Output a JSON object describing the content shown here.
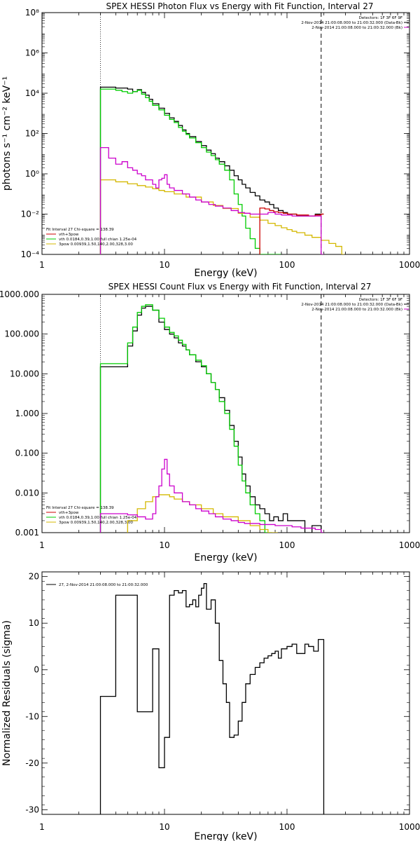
{
  "chart_data": [
    {
      "type": "line",
      "title": "SPEX HESSI Photon Flux vs Energy with Fit Function, Interval 27",
      "xlabel": "Energy (keV)",
      "ylabel": "photons s⁻¹ cm⁻² keV⁻¹",
      "xscale": "log",
      "yscale": "log",
      "xlim": [
        1,
        1000
      ],
      "ylim": [
        0.0001,
        100000000
      ],
      "xticks": [
        1,
        10,
        100,
        1000
      ],
      "xtick_labels": [
        "1",
        "10",
        "100",
        "1000"
      ],
      "yticks": [
        0.0001,
        0.01,
        1,
        100,
        10000,
        1000000,
        100000000
      ],
      "ytick_labels": [
        "10⁻⁴",
        "10⁻²",
        "10⁰",
        "10²",
        "10⁴",
        "10⁶",
        "10⁸"
      ],
      "header_lines": [
        "Detectors: 1F 3F 6F 9F",
        "2-Nov-2014 21:00:08.000 to 21:00:32.000 (Data-Bk)",
        "2-Nov-2014 21:00:08.000 to 21:00:32.000 (Bk)"
      ],
      "legend_lines": [
        "Fit Interval 27   Chi-square = 138.39",
        "vth+3pow",
        "vth 0.0184,0.39,1.00  full chian 1.25e-04",
        "3pow 0.00939,1.50,140,2.00,328,3.00"
      ],
      "legend_position": "bottom-left",
      "vlines": [
        3.0,
        190
      ],
      "series": [
        {
          "name": "2-Nov-2014 21:00:08.000 to 21:00:32.000 (Data-Bk)",
          "color": "#000000",
          "x": [
            3.0,
            3.5,
            4.0,
            4.5,
            5.0,
            5.5,
            6.0,
            6.5,
            7.0,
            7.5,
            8.0,
            9.0,
            10.0,
            11.0,
            12.0,
            13.0,
            14.0,
            15.0,
            16.0,
            18.0,
            20.0,
            22.0,
            24.0,
            26.0,
            28.0,
            31.0,
            34.0,
            37.0,
            40.0,
            43.0,
            46.0,
            50.0,
            55.0,
            60.0,
            66.0,
            72.0,
            78.0,
            85.0,
            93.0,
            101.0,
            110.0,
            120.0,
            130.0,
            140.0,
            150.0,
            170.0,
            190.0
          ],
          "y": [
            20000,
            20000,
            18000,
            18000,
            16000,
            12000,
            15000,
            11000,
            8000,
            5000,
            3000,
            1800,
            1000,
            600,
            400,
            250,
            150,
            100,
            70,
            40,
            25,
            15,
            10,
            6,
            4,
            2.5,
            1.5,
            0.8,
            0.5,
            0.3,
            0.2,
            0.12,
            0.08,
            0.05,
            0.04,
            0.03,
            0.02,
            0.015,
            0.012,
            0.01,
            0.01,
            0.008,
            0.008,
            0.008,
            0.008,
            0.01,
            0.01
          ]
        },
        {
          "name": "vth",
          "color": "#00cc00",
          "x": [
            3.0,
            3.5,
            4.0,
            4.5,
            5.0,
            5.5,
            6.0,
            6.5,
            7.0,
            7.5,
            8.0,
            9.0,
            10.0,
            11.0,
            12.0,
            13.0,
            14.0,
            15.0,
            16.0,
            18.0,
            20.0,
            22.0,
            24.0,
            26.0,
            28.0,
            31.0,
            34.0,
            37.0,
            40.0,
            43.0,
            46.0,
            50.0,
            55.0,
            60.0,
            66.0,
            72.0,
            78.0,
            85.0
          ],
          "y": [
            16000,
            16000,
            14000,
            12000,
            10000,
            12000,
            14000,
            9000,
            6000,
            4000,
            2500,
            1500,
            800,
            500,
            350,
            200,
            130,
            90,
            60,
            35,
            20,
            12,
            8,
            5,
            3,
            1.5,
            0.5,
            0.1,
            0.03,
            0.008,
            0.002,
            0.0006,
            0.0002,
            0.0001,
            0.0001,
            0.0001,
            0.0001,
            0.0001
          ]
        },
        {
          "name": "3pow",
          "color": "#d4b800",
          "x": [
            3.0,
            4.0,
            5.0,
            6.0,
            7.0,
            8.0,
            9.0,
            10.0,
            12.0,
            15.0,
            20.0,
            25.0,
            30.0,
            40.0,
            50.0,
            60.0,
            70.0,
            80.0,
            90.0,
            100.0,
            110.0,
            120.0,
            140.0,
            160.0,
            190.0,
            220.0,
            250.0,
            280.0
          ],
          "y": [
            0.5,
            0.4,
            0.32,
            0.26,
            0.22,
            0.18,
            0.15,
            0.13,
            0.1,
            0.07,
            0.04,
            0.027,
            0.019,
            0.011,
            0.007,
            0.005,
            0.0035,
            0.0027,
            0.0021,
            0.0017,
            0.0014,
            0.0012,
            0.0009,
            0.0007,
            0.0005,
            0.00035,
            0.00025,
            0.0001
          ]
        },
        {
          "name": "vth+3pow",
          "color": "#cc0000",
          "x": [
            60.0,
            66.0,
            72.0,
            78.0,
            85.0,
            93.0,
            101.0,
            110.0,
            120.0,
            130.0,
            150.0,
            170.0,
            190.0
          ],
          "y": [
            0.02,
            0.018,
            0.015,
            0.013,
            0.012,
            0.011,
            0.01,
            0.01,
            0.009,
            0.009,
            0.008,
            0.009,
            0.01
          ]
        },
        {
          "name": "2-Nov-2014 21:00:08.000 to 21:00:32.000 (Bk)",
          "color": "#cc00cc",
          "x": [
            3.0,
            3.5,
            4.0,
            4.5,
            5.0,
            5.5,
            6.0,
            6.5,
            7.0,
            8.0,
            8.5,
            9.0,
            9.5,
            10.0,
            10.5,
            11.0,
            12.0,
            14.0,
            16.0,
            18.0,
            20.0,
            23.0,
            26.0,
            30.0,
            35.0,
            40.0,
            45.0,
            50.0,
            60.0,
            70.0,
            80.0,
            90.0,
            100.0,
            110.0,
            120.0,
            140.0,
            160.0,
            190.0
          ],
          "y": [
            20,
            6,
            3,
            4,
            2,
            1.5,
            1,
            0.8,
            0.5,
            0.3,
            0.2,
            0.5,
            0.6,
            0.9,
            0.3,
            0.2,
            0.15,
            0.1,
            0.07,
            0.05,
            0.04,
            0.03,
            0.025,
            0.02,
            0.015,
            0.012,
            0.011,
            0.01,
            0.01,
            0.012,
            0.01,
            0.009,
            0.009,
            0.008,
            0.008,
            0.008,
            0.008,
            0.0001
          ]
        }
      ]
    },
    {
      "type": "line",
      "title": "SPEX HESSI Count Flux vs Energy with Fit Function, Interval 27",
      "xlabel": "Energy (keV)",
      "xscale": "log",
      "yscale": "log",
      "xlim": [
        1,
        1000
      ],
      "ylim": [
        0.001,
        1000
      ],
      "xticks": [
        1,
        10,
        100,
        1000
      ],
      "xtick_labels": [
        "1",
        "10",
        "100",
        "1000"
      ],
      "yticks": [
        0.001,
        0.01,
        0.1,
        1,
        10,
        100,
        1000
      ],
      "ytick_labels": [
        "0.001",
        "0.010",
        "0.100",
        "1.000",
        "10.000",
        "100.000",
        "1000.000"
      ],
      "header_lines": [
        "Detectors: 1F 3F 6F 9F",
        "2-Nov-2014 21:00:08.000 to 21:00:32.000 (Data-Bk)",
        "2-Nov-2014 21:00:08.000 to 21:00:32.000 (Bk)"
      ],
      "legend_lines": [
        "Fit Interval 27   Chi-square = 138.39",
        "vth+3pow",
        "vth 0.0184,0.39,1.00  full chian 1.25e-04",
        "3pow 0.00939,1.50,140,2.00,328,3.00"
      ],
      "legend_position": "bottom-left",
      "vlines": [
        3.0,
        190
      ],
      "series": [
        {
          "name": "2-Nov-2014 21:00:08.000 to 21:00:32.000 (Data-Bk)",
          "color": "#000000",
          "x": [
            3.0,
            4.0,
            5.0,
            5.5,
            6.0,
            6.5,
            7.0,
            8.0,
            9.0,
            10.0,
            11.0,
            12.0,
            13.0,
            14.0,
            15.0,
            16.0,
            18.0,
            20.0,
            22.0,
            24.0,
            26.0,
            28.0,
            31.0,
            34.0,
            37.0,
            40.0,
            43.0,
            46.0,
            50.0,
            55.0,
            60.0,
            66.0,
            72.0,
            78.0,
            85.0,
            93.0,
            101.0,
            110.0,
            120.0,
            140.0,
            160.0,
            190.0
          ],
          "y": [
            15,
            15,
            50,
            120,
            300,
            450,
            500,
            400,
            200,
            130,
            100,
            80,
            60,
            50,
            40,
            30,
            20,
            15,
            10,
            6,
            4,
            2.5,
            1.2,
            0.5,
            0.2,
            0.08,
            0.03,
            0.015,
            0.008,
            0.005,
            0.004,
            0.003,
            0.002,
            0.0025,
            0.002,
            0.003,
            0.002,
            0.002,
            0.002,
            0.001,
            0.0015,
            0.001
          ]
        },
        {
          "name": "vth",
          "color": "#00cc00",
          "x": [
            3.0,
            4.0,
            5.0,
            5.5,
            6.0,
            6.5,
            7.0,
            8.0,
            9.0,
            10.0,
            11.0,
            12.0,
            13.0,
            14.0,
            15.0,
            16.0,
            18.0,
            20.0,
            22.0,
            24.0,
            26.0,
            28.0,
            31.0,
            34.0,
            37.0,
            40.0,
            43.0,
            46.0,
            50.0,
            55.0,
            60.0,
            66.0,
            72.0
          ],
          "y": [
            18,
            18,
            60,
            150,
            350,
            500,
            550,
            400,
            250,
            150,
            110,
            90,
            70,
            55,
            40,
            30,
            22,
            16,
            10,
            6,
            4,
            2,
            1,
            0.4,
            0.15,
            0.05,
            0.02,
            0.01,
            0.005,
            0.003,
            0.002,
            0.001,
            0.001
          ]
        },
        {
          "name": "3pow",
          "color": "#d4b800",
          "x": [
            5.0,
            6.0,
            7.0,
            8.0,
            9.0,
            10.0,
            11.0,
            12.0,
            14.0,
            16.0,
            20.0,
            25.0,
            30.0,
            40.0,
            50.0,
            60.0,
            70.0,
            80.0
          ],
          "y": [
            0.002,
            0.004,
            0.006,
            0.008,
            0.009,
            0.009,
            0.008,
            0.007,
            0.006,
            0.005,
            0.004,
            0.003,
            0.0025,
            0.002,
            0.0015,
            0.0012,
            0.001,
            0.001
          ]
        },
        {
          "name": "2-Nov-2014 21:00:08.000 to 21:00:32.000 (Bk)",
          "color": "#cc00cc",
          "x": [
            3.0,
            4.0,
            5.0,
            6.0,
            7.0,
            8.0,
            8.5,
            9.0,
            9.5,
            10.0,
            10.5,
            11.0,
            12.0,
            14.0,
            16.0,
            18.0,
            20.0,
            23.0,
            26.0,
            30.0,
            35.0,
            40.0,
            45.0,
            50.0,
            60.0,
            70.0,
            80.0,
            90.0,
            100.0,
            110.0,
            130.0,
            150.0,
            170.0,
            190.0
          ],
          "y": [
            0.003,
            0.003,
            0.0028,
            0.0025,
            0.0022,
            0.003,
            0.008,
            0.015,
            0.04,
            0.07,
            0.03,
            0.015,
            0.01,
            0.006,
            0.005,
            0.004,
            0.0035,
            0.003,
            0.0025,
            0.0022,
            0.002,
            0.0018,
            0.0017,
            0.0017,
            0.0016,
            0.0016,
            0.0015,
            0.0015,
            0.0015,
            0.0014,
            0.0013,
            0.0013,
            0.0012,
            0.001
          ]
        }
      ]
    },
    {
      "type": "line",
      "title": "",
      "xlabel": "Energy (keV)",
      "ylabel": "Normalized Residuals (sigma)",
      "xscale": "log",
      "yscale": "linear",
      "xlim": [
        1,
        1000
      ],
      "ylim": [
        -31,
        21
      ],
      "xticks": [
        1,
        10,
        100,
        1000
      ],
      "xtick_labels": [
        "1",
        "10",
        "100",
        "1000"
      ],
      "yticks": [
        -30,
        -20,
        -10,
        0,
        10,
        20
      ],
      "ytick_labels": [
        "-30",
        "-20",
        "-10",
        "0",
        "10",
        "20"
      ],
      "legend_lines": [
        "27,  2-Nov-2014 21:00:08.000 to 21:00:32.000"
      ],
      "legend_position": "top-left",
      "series": [
        {
          "name": "27,  2-Nov-2014 21:00:08.000 to 21:00:32.000",
          "color": "#000000",
          "x": [
            3.0,
            4.0,
            5.0,
            6.0,
            7.0,
            8.0,
            9.0,
            10.0,
            11.0,
            12.0,
            13.0,
            14.0,
            15.0,
            16.0,
            17.0,
            18.0,
            19.0,
            20.0,
            21.0,
            22.0,
            24.0,
            26.0,
            28.0,
            30.0,
            32.0,
            34.0,
            37.0,
            40.0,
            43.0,
            46.0,
            50.0,
            55.0,
            60.0,
            65.0,
            70.0,
            75.0,
            80.0,
            85.0,
            90.0,
            100.0,
            110.0,
            120.0,
            130.0,
            140.0,
            150.0,
            165.0,
            180.0,
            190.0
          ],
          "y": [
            -5.7,
            16,
            16,
            -9,
            -9,
            4.5,
            -21,
            -14.5,
            16,
            17,
            16.5,
            17,
            13.5,
            14,
            15,
            13.5,
            16,
            17.5,
            18.5,
            13,
            15,
            10,
            2,
            -3,
            -7,
            -14.5,
            -14,
            -11,
            -7,
            -3,
            -1,
            0.5,
            1.5,
            2.5,
            3,
            3.5,
            4,
            2.5,
            4.5,
            5,
            5.5,
            3.5,
            3.5,
            5.5,
            5,
            4,
            6.5,
            6.5
          ]
        }
      ]
    }
  ]
}
